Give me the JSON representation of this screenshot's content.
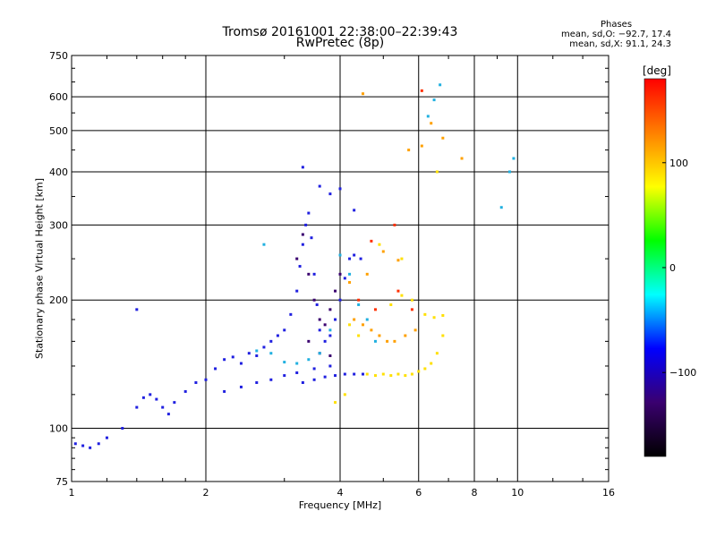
{
  "header": {
    "title_line1": "Tromsø 20161001 22:38:00–22:39:43",
    "title_line2": "RwPretec (8p)"
  },
  "phases_box": {
    "heading": "Phases",
    "line_o": "mean, sd,O: −92.7, 17.4",
    "line_x": "mean, sd,X:  91.1, 24.3"
  },
  "chart_data": {
    "type": "scatter",
    "xlabel": "Frequency [MHz]",
    "ylabel": "Stationary phase Virtual Height [km]",
    "xscale": "log",
    "yscale": "log",
    "xlim": [
      1,
      16
    ],
    "ylim": [
      75,
      750
    ],
    "x_ticks": [
      1,
      2,
      4,
      6,
      8,
      10,
      16
    ],
    "x_tick_labels": [
      "1",
      "2",
      "4",
      "6",
      "8",
      "10",
      "16"
    ],
    "y_ticks": [
      75,
      100,
      200,
      300,
      400,
      500,
      600,
      750
    ],
    "y_tick_labels": [
      "75",
      "100",
      "200",
      "300",
      "400",
      "500",
      "600",
      "750"
    ],
    "grid": true,
    "colorbar": {
      "label": "[deg]",
      "range": [
        -180,
        180
      ],
      "ticks": [
        100,
        0,
        -100
      ],
      "tick_labels": [
        "100",
        "0",
        "−100"
      ],
      "colormap": [
        "#000000",
        "#3a006f",
        "#0000ff",
        "#00ffff",
        "#00ff00",
        "#ffff00",
        "#ff8000",
        "#ff0000"
      ]
    },
    "series": [
      {
        "color": "#2020e0",
        "points": [
          [
            1.02,
            92
          ],
          [
            1.06,
            91
          ],
          [
            1.1,
            90
          ],
          [
            1.15,
            92
          ],
          [
            1.2,
            95
          ],
          [
            1.3,
            100
          ],
          [
            1.4,
            112
          ],
          [
            1.45,
            118
          ],
          [
            1.5,
            120
          ],
          [
            1.55,
            117
          ],
          [
            1.6,
            112
          ],
          [
            1.65,
            108
          ],
          [
            1.7,
            115
          ],
          [
            1.8,
            122
          ],
          [
            1.9,
            128
          ],
          [
            2.0,
            130
          ],
          [
            2.1,
            138
          ],
          [
            2.2,
            145
          ],
          [
            2.3,
            147
          ],
          [
            2.4,
            142
          ],
          [
            2.5,
            150
          ],
          [
            2.6,
            148
          ],
          [
            2.7,
            155
          ],
          [
            2.8,
            160
          ],
          [
            2.9,
            165
          ],
          [
            3.0,
            170
          ],
          [
            3.1,
            185
          ],
          [
            3.2,
            210
          ],
          [
            3.25,
            240
          ],
          [
            3.3,
            270
          ],
          [
            3.35,
            300
          ],
          [
            3.4,
            320
          ],
          [
            3.45,
            280
          ],
          [
            3.5,
            230
          ],
          [
            3.55,
            195
          ],
          [
            3.6,
            170
          ],
          [
            3.7,
            160
          ],
          [
            3.8,
            165
          ],
          [
            3.9,
            180
          ],
          [
            4.0,
            200
          ],
          [
            4.1,
            225
          ],
          [
            4.2,
            250
          ],
          [
            4.3,
            255
          ],
          [
            4.45,
            250
          ],
          [
            3.3,
            128
          ],
          [
            3.5,
            130
          ],
          [
            3.7,
            132
          ],
          [
            3.9,
            133
          ],
          [
            4.1,
            134
          ],
          [
            4.3,
            134
          ],
          [
            4.5,
            134
          ],
          [
            2.2,
            122
          ],
          [
            2.4,
            125
          ],
          [
            2.6,
            128
          ],
          [
            2.8,
            130
          ],
          [
            3.0,
            133
          ],
          [
            3.2,
            135
          ],
          [
            3.5,
            138
          ],
          [
            3.8,
            140
          ],
          [
            3.3,
            410
          ],
          [
            3.6,
            370
          ],
          [
            3.8,
            355
          ],
          [
            4.0,
            365
          ],
          [
            4.3,
            325
          ],
          [
            1.4,
            190
          ]
        ]
      },
      {
        "color": "#3a006f",
        "points": [
          [
            3.2,
            250
          ],
          [
            3.3,
            285
          ],
          [
            3.4,
            230
          ],
          [
            3.5,
            200
          ],
          [
            3.6,
            180
          ],
          [
            3.7,
            175
          ],
          [
            3.8,
            190
          ],
          [
            3.9,
            210
          ],
          [
            4.0,
            230
          ],
          [
            3.4,
            160
          ],
          [
            3.6,
            150
          ],
          [
            3.8,
            148
          ]
        ]
      },
      {
        "color": "#20b0e0",
        "points": [
          [
            2.6,
            152
          ],
          [
            2.8,
            150
          ],
          [
            3.0,
            143
          ],
          [
            3.2,
            142
          ],
          [
            3.4,
            145
          ],
          [
            3.6,
            150
          ],
          [
            3.8,
            170
          ],
          [
            4.0,
            255
          ],
          [
            4.2,
            230
          ],
          [
            4.4,
            195
          ],
          [
            4.6,
            180
          ],
          [
            4.8,
            160
          ],
          [
            2.7,
            270
          ],
          [
            6.3,
            540
          ],
          [
            6.5,
            590
          ],
          [
            6.7,
            640
          ],
          [
            9.2,
            330
          ],
          [
            9.6,
            400
          ],
          [
            9.8,
            430
          ]
        ]
      },
      {
        "color": "#ffe000",
        "points": [
          [
            4.6,
            134
          ],
          [
            4.8,
            133
          ],
          [
            5.0,
            134
          ],
          [
            5.2,
            133
          ],
          [
            5.4,
            134
          ],
          [
            5.6,
            133
          ],
          [
            5.8,
            134
          ],
          [
            6.0,
            136
          ],
          [
            6.2,
            138
          ],
          [
            6.4,
            142
          ],
          [
            6.6,
            150
          ],
          [
            6.8,
            165
          ],
          [
            5.2,
            195
          ],
          [
            5.5,
            205
          ],
          [
            5.8,
            200
          ],
          [
            6.2,
            185
          ],
          [
            6.5,
            182
          ],
          [
            6.8,
            184
          ],
          [
            4.2,
            175
          ],
          [
            4.4,
            165
          ],
          [
            4.9,
            270
          ],
          [
            5.5,
            250
          ],
          [
            4.1,
            120
          ],
          [
            3.9,
            115
          ],
          [
            6.6,
            400
          ]
        ]
      },
      {
        "color": "#ffa000",
        "points": [
          [
            4.3,
            180
          ],
          [
            4.5,
            175
          ],
          [
            4.7,
            170
          ],
          [
            4.9,
            165
          ],
          [
            5.1,
            160
          ],
          [
            5.3,
            160
          ],
          [
            5.6,
            165
          ],
          [
            5.9,
            170
          ],
          [
            4.2,
            220
          ],
          [
            4.6,
            230
          ],
          [
            5.0,
            260
          ],
          [
            5.4,
            248
          ],
          [
            6.1,
            460
          ],
          [
            6.4,
            520
          ],
          [
            6.8,
            480
          ],
          [
            7.5,
            430
          ],
          [
            5.7,
            450
          ],
          [
            4.5,
            610
          ]
        ]
      },
      {
        "color": "#ff3000",
        "points": [
          [
            4.4,
            200
          ],
          [
            4.8,
            190
          ],
          [
            5.4,
            210
          ],
          [
            5.8,
            190
          ],
          [
            6.1,
            620
          ],
          [
            5.3,
            300
          ],
          [
            4.7,
            275
          ]
        ]
      }
    ]
  }
}
